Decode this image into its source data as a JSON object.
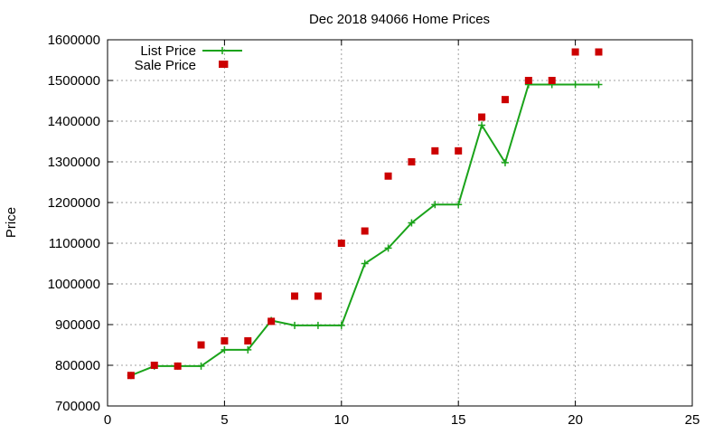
{
  "chart_data": {
    "type": "line",
    "title": "Dec 2018 94066 Home Prices",
    "xlabel": "",
    "ylabel": "Price",
    "xlim": [
      0,
      25
    ],
    "ylim": [
      700000,
      1600000
    ],
    "xticks": [
      0,
      5,
      10,
      15,
      20,
      25
    ],
    "yticks": [
      700000,
      800000,
      900000,
      1000000,
      1100000,
      1200000,
      1300000,
      1400000,
      1500000,
      1600000
    ],
    "grid": true,
    "legend_position": "top-left",
    "series": [
      {
        "name": "List Price",
        "style": "line-points",
        "color": "#1aa31a",
        "x": [
          1,
          2,
          3,
          4,
          5,
          6,
          7,
          8,
          9,
          10,
          11,
          12,
          13,
          14,
          15,
          16,
          17,
          18,
          19,
          20,
          21
        ],
        "y": [
          775000,
          798000,
          798000,
          798000,
          838000,
          838000,
          910000,
          898000,
          898000,
          898000,
          1050000,
          1088000,
          1150000,
          1195000,
          1195000,
          1390000,
          1298000,
          1490000,
          1490000,
          1490000,
          1490000
        ]
      },
      {
        "name": "Sale Price",
        "style": "points",
        "color": "#cc0000",
        "x": [
          1,
          2,
          3,
          4,
          5,
          5,
          6,
          7,
          8,
          9,
          10,
          11,
          12,
          13,
          14,
          15,
          16,
          17,
          18,
          19,
          20,
          21
        ],
        "y": [
          775000,
          800000,
          798000,
          850000,
          860000,
          1540000,
          860000,
          908000,
          970000,
          970000,
          1100000,
          1130000,
          1265000,
          1300000,
          1327000,
          1327000,
          1410000,
          1453000,
          1500000,
          1500000,
          1570000,
          1570000
        ]
      }
    ]
  }
}
